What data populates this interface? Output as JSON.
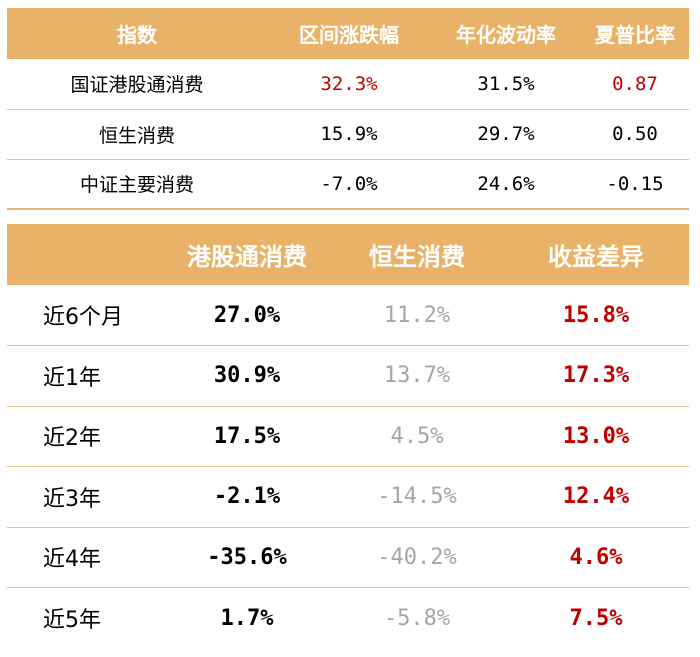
{
  "index_table": {
    "headers": [
      "指数",
      "区间涨跌幅",
      "年化波动率",
      "夏普比率"
    ],
    "rows": [
      {
        "name": "国证港股通消费",
        "change": "32.3%",
        "volatility": "31.5%",
        "sharpe": "0.87"
      },
      {
        "name": "恒生消费",
        "change": "15.9%",
        "volatility": "29.7%",
        "sharpe": "0.50"
      },
      {
        "name": "中证主要消费",
        "change": "-7.0%",
        "volatility": "24.6%",
        "sharpe": "-0.15"
      }
    ]
  },
  "returns_table": {
    "headers": [
      "",
      "港股通消费",
      "恒生消费",
      "收益差异"
    ],
    "rows": [
      {
        "period": "近6个月",
        "a": "27.0%",
        "b": "11.2%",
        "diff": "15.8%"
      },
      {
        "period": "近1年",
        "a": "30.9%",
        "b": "13.7%",
        "diff": "17.3%"
      },
      {
        "period": "近2年",
        "a": "17.5%",
        "b": "4.5%",
        "diff": "13.0%"
      },
      {
        "period": "近3年",
        "a": "-2.1%",
        "b": "-14.5%",
        "diff": "12.4%"
      },
      {
        "period": "近4年",
        "a": "-35.6%",
        "b": "-40.2%",
        "diff": "4.6%"
      },
      {
        "period": "近5年",
        "a": "1.7%",
        "b": "-5.8%",
        "diff": "7.5%"
      }
    ]
  },
  "colors": {
    "header_bg": "#e8b368",
    "highlight_red": "#c00000",
    "muted_gray": "#a6a6a6"
  }
}
